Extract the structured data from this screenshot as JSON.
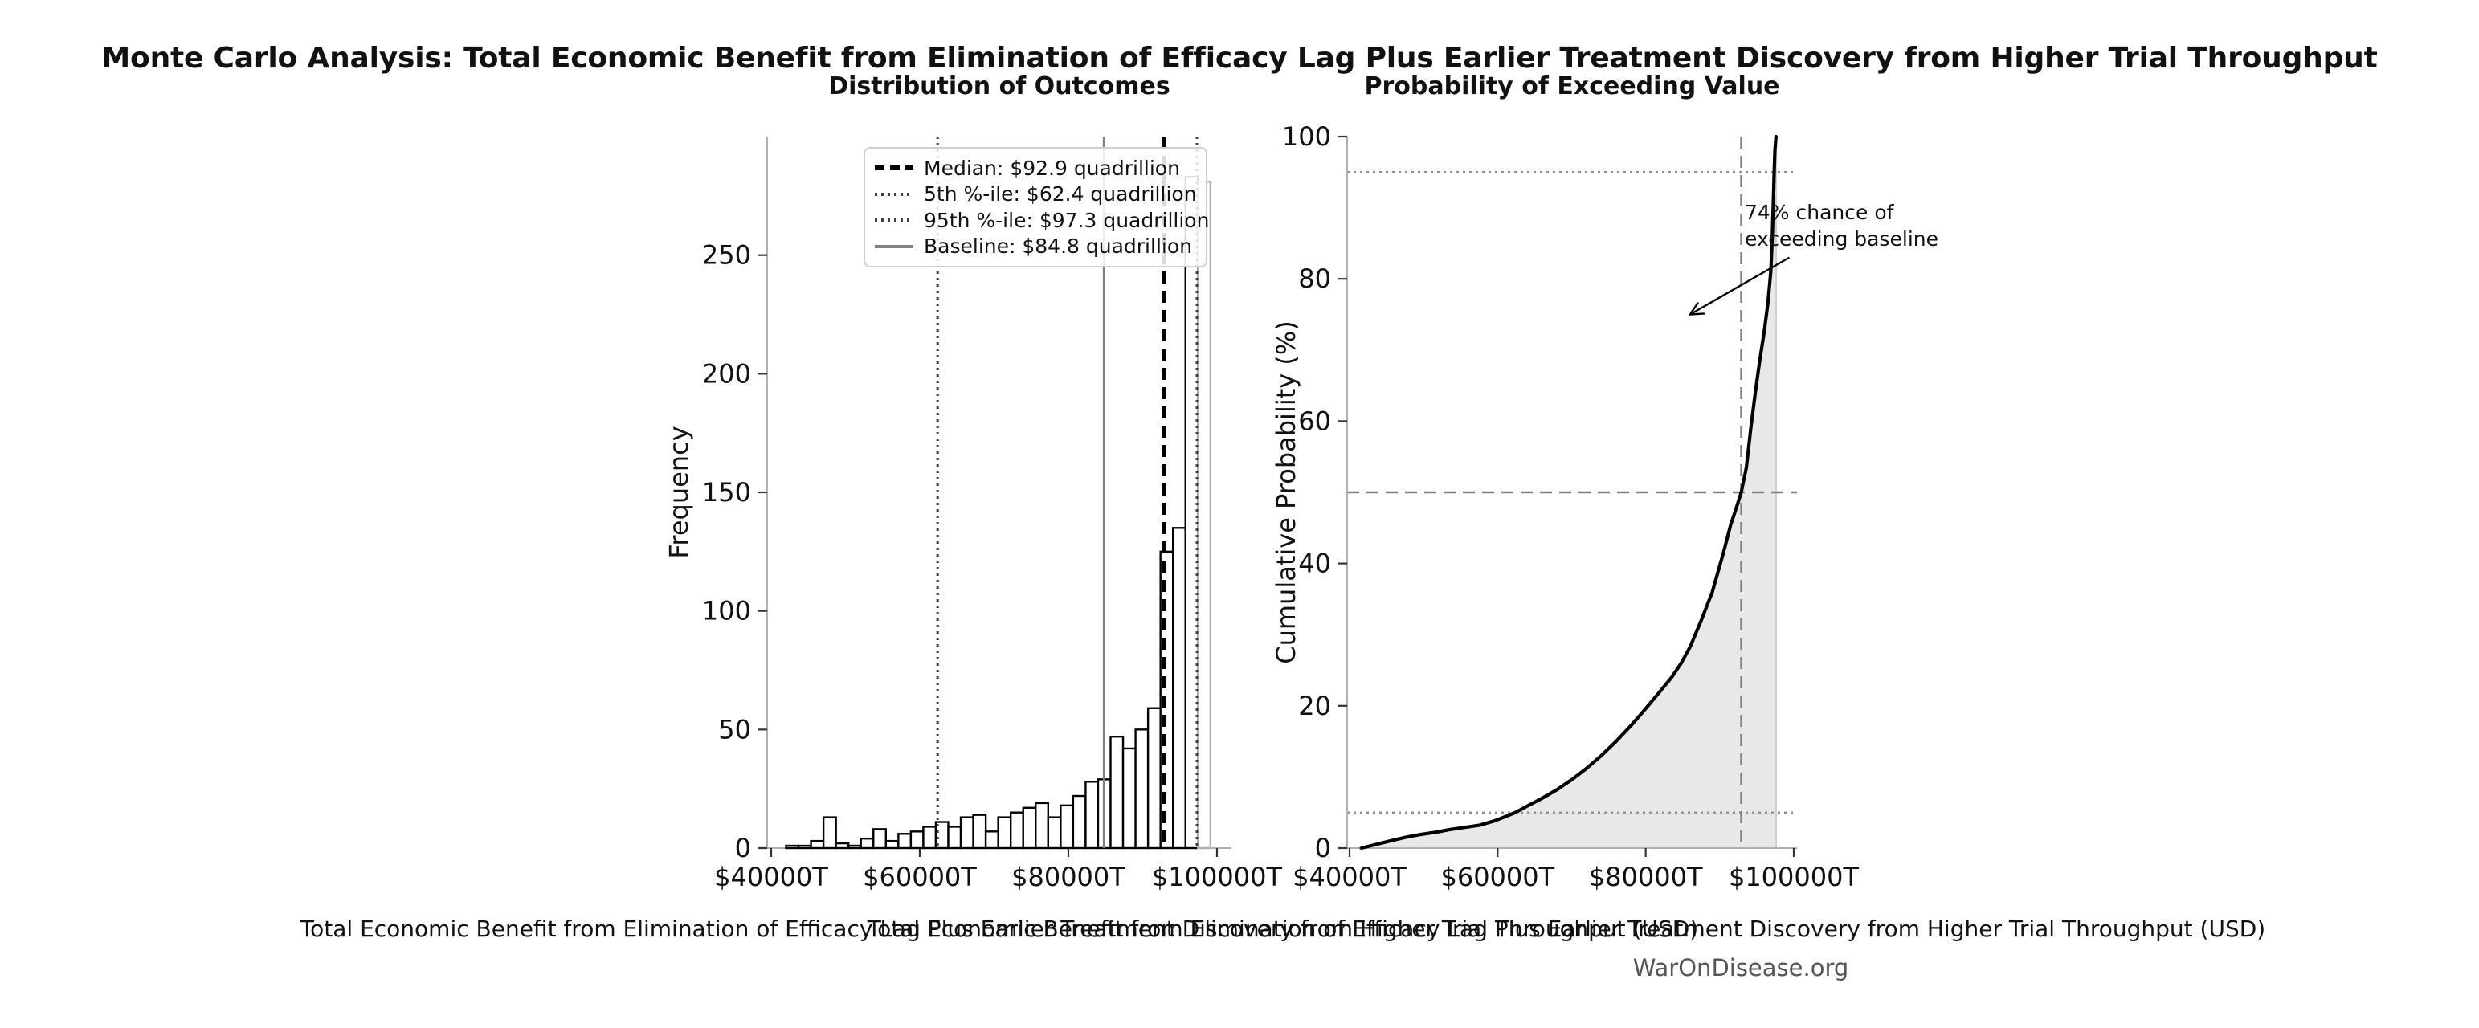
{
  "page": {
    "title": "Monte Carlo Analysis: Total Economic Benefit from Elimination of Efficacy Lag Plus Earlier Treatment Discovery from Higher Trial Throughput",
    "footer": "WarOnDisease.org"
  },
  "chart_data": [
    {
      "type": "bar",
      "title": "Distribution of Outcomes",
      "xlabel": "Total Economic Benefit from Elimination of Efficacy Lag Plus Earlier Treatment Discovery from Higher Trial Throughput (USD)",
      "ylabel": "Frequency",
      "xlim": [
        39460,
        101950
      ],
      "ylim": [
        0,
        300
      ],
      "x_tick_values": [
        40000,
        60000,
        80000,
        100000
      ],
      "x_tick_labels": [
        "$40000T",
        "$60000T",
        "$80000T",
        "$100000T"
      ],
      "y_tick_values": [
        0,
        50,
        100,
        150,
        200,
        250
      ],
      "grid": false,
      "histogram": {
        "bin_start": 42000,
        "bin_width": 1680,
        "counts": [
          1,
          1,
          3,
          13,
          2,
          1,
          4,
          8,
          3,
          6,
          7,
          9,
          11,
          9,
          13,
          14,
          7,
          13,
          15,
          17,
          19,
          13,
          18,
          22,
          28,
          29,
          47,
          42,
          50,
          59,
          125,
          135,
          283,
          281
        ],
        "bar_fill": "#ffffff",
        "bar_edge": "#000000",
        "last_bar_edge": "#b0b0b0"
      },
      "marker_lines": [
        {
          "label": "Median: $92.9 quadrillion",
          "x": 92900,
          "style": "dashed",
          "color": "#000000",
          "width": 5
        },
        {
          "label": "5th %-ile: $62.4 quadrillion",
          "x": 62400,
          "style": "dotted",
          "color": "#404040",
          "width": 3
        },
        {
          "label": "95th %-ile: $97.3 quadrillion",
          "x": 97300,
          "style": "dotted",
          "color": "#404040",
          "width": 3
        },
        {
          "label": "Baseline: $84.8 quadrillion",
          "x": 84800,
          "style": "solid",
          "color": "#808080",
          "width": 3
        }
      ],
      "legend_position": "upper right"
    },
    {
      "type": "line",
      "title": "Probability of Exceeding Value",
      "xlabel": "Total Economic Benefit from Elimination of Efficacy Lag Plus Earlier Treatment Discovery from Higher Trial Throughput (USD)",
      "ylabel": "Cumulative Probability (%)",
      "xlim": [
        39675,
        100435
      ],
      "ylim": [
        0,
        100
      ],
      "x_tick_values": [
        40000,
        60000,
        80000,
        100000
      ],
      "x_tick_labels": [
        "$40000T",
        "$60000T",
        "$80000T",
        "$100000T"
      ],
      "y_tick_values": [
        0,
        20,
        40,
        60,
        80,
        100
      ],
      "grid": false,
      "curve": {
        "color": "#000000",
        "width": 4.2,
        "fill_color": "#e8e8e8",
        "fill_edge_color": "#d0d0d0",
        "points": [
          [
            41600,
            0
          ],
          [
            43500,
            0.5
          ],
          [
            45500,
            1.0
          ],
          [
            47500,
            1.5
          ],
          [
            49500,
            1.9
          ],
          [
            51500,
            2.2
          ],
          [
            53500,
            2.6
          ],
          [
            55500,
            2.9
          ],
          [
            57500,
            3.2
          ],
          [
            59500,
            3.8
          ],
          [
            61000,
            4.4
          ],
          [
            62400,
            5.0
          ],
          [
            64000,
            5.9
          ],
          [
            66000,
            7.0
          ],
          [
            68000,
            8.2
          ],
          [
            70000,
            9.6
          ],
          [
            72000,
            11.2
          ],
          [
            74000,
            13.0
          ],
          [
            76000,
            15.0
          ],
          [
            78000,
            17.2
          ],
          [
            80000,
            19.6
          ],
          [
            82000,
            22.1
          ],
          [
            83500,
            24.0
          ],
          [
            84800,
            26.0
          ],
          [
            86000,
            28.3
          ],
          [
            87500,
            32.0
          ],
          [
            89000,
            36.0
          ],
          [
            90500,
            41.5
          ],
          [
            91500,
            45.5
          ],
          [
            92400,
            48.3
          ],
          [
            92900,
            50.0
          ],
          [
            93600,
            53.5
          ],
          [
            94200,
            59.0
          ],
          [
            94800,
            64.0
          ],
          [
            95400,
            68.5
          ],
          [
            96000,
            72.5
          ],
          [
            96500,
            76.5
          ],
          [
            96900,
            81.0
          ],
          [
            97100,
            86.0
          ],
          [
            97250,
            91.0
          ],
          [
            97350,
            95.0
          ],
          [
            97450,
            98.0
          ],
          [
            97600,
            100.0
          ]
        ]
      },
      "reference_lines_h": [
        {
          "y": 95,
          "style": "dotted",
          "color": "#909090",
          "width": 2.5
        },
        {
          "y": 50,
          "style": "dashed",
          "color": "#808080",
          "width": 2.5
        },
        {
          "y": 5,
          "style": "dotted",
          "color": "#909090",
          "width": 2.5
        }
      ],
      "reference_lines_v": [
        {
          "x": 92900,
          "style": "dashed",
          "color": "#808080",
          "width": 2.5
        }
      ],
      "annotation": {
        "line1": "74% chance of",
        "line2": "exceeding baseline",
        "text_pos": [
          93400,
          91.5
        ],
        "arrow_from": [
          99400,
          83
        ],
        "arrow_to": [
          86000,
          75
        ]
      }
    }
  ]
}
